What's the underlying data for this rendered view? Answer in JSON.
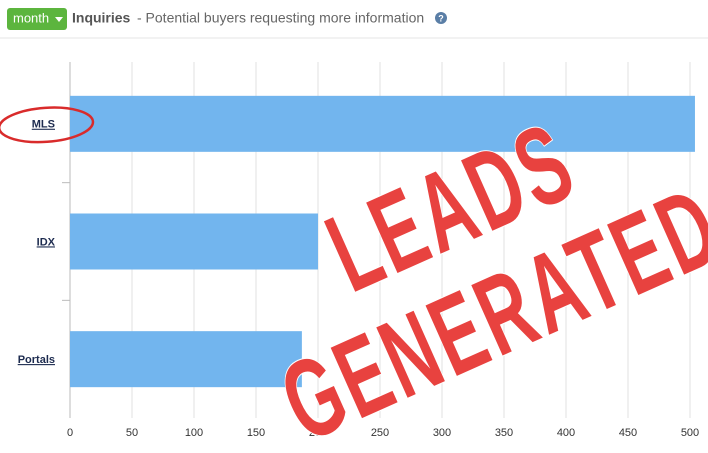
{
  "header": {
    "button": "month",
    "title": "Inquiries",
    "subtitle": "- Potential buyers requesting more information",
    "help_icon": "?"
  },
  "chart_data": {
    "type": "hbar",
    "categories": [
      "MLS",
      "IDX",
      "Portals"
    ],
    "values": [
      504,
      200,
      187
    ],
    "color": "#72b5ee",
    "xlim": [
      0,
      510
    ],
    "xticks": [
      0,
      50,
      100,
      150,
      200,
      250,
      300,
      350,
      400,
      450,
      500
    ],
    "grid": true,
    "annotations": [
      "LEADS",
      "GENERATED"
    ],
    "annotation_color": "#e8423f",
    "highlight_category": 0
  }
}
